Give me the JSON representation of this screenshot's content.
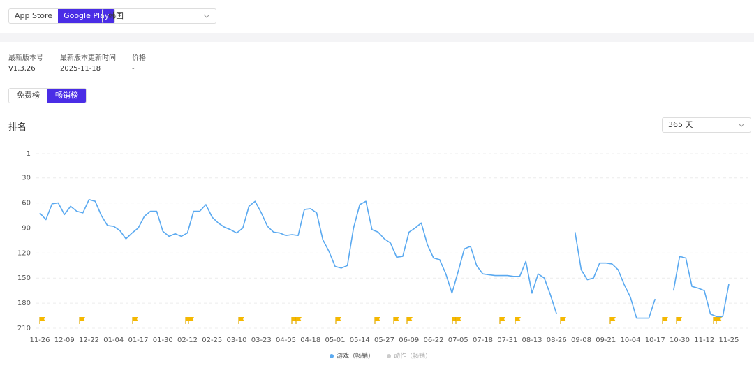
{
  "filters": {
    "store_tabs": [
      "App Store",
      "Google Play"
    ],
    "region": "韩国"
  },
  "app_info": {
    "fields": [
      {
        "label": "最新版本号",
        "value": "V1.3.26"
      },
      {
        "label": "最新版本更新时间",
        "value": "2025-11-18"
      },
      {
        "label": "价格",
        "value": "-"
      }
    ]
  },
  "rank_tabs": [
    "免费榜",
    "畅销榜"
  ],
  "chart_data": {
    "type": "line",
    "title": "排名",
    "range_option": "365 天",
    "y_reversed": true,
    "ylim": [
      1,
      210
    ],
    "yticks": [
      1,
      30,
      60,
      90,
      120,
      150,
      180,
      210
    ],
    "grid": true,
    "categories": [
      "11-26",
      null,
      null,
      null,
      "12-09",
      null,
      null,
      null,
      "12-22",
      null,
      null,
      null,
      "01-04",
      null,
      null,
      null,
      "01-17",
      null,
      null,
      null,
      "01-30",
      null,
      null,
      null,
      "02-12",
      null,
      null,
      null,
      "02-25",
      null,
      null,
      null,
      "03-10",
      null,
      null,
      null,
      "03-23",
      null,
      null,
      null,
      "04-05",
      null,
      null,
      null,
      "04-18",
      null,
      null,
      null,
      "05-01",
      null,
      null,
      null,
      "05-14",
      null,
      null,
      null,
      "05-27",
      null,
      null,
      null,
      "06-09",
      null,
      null,
      null,
      "06-22",
      null,
      null,
      null,
      "07-05",
      null,
      null,
      null,
      "07-18",
      null,
      null,
      null,
      "07-31",
      null,
      null,
      null,
      "08-13",
      null,
      null,
      null,
      "08-26",
      null,
      null,
      null,
      "09-08",
      null,
      null,
      null,
      "09-21",
      null,
      null,
      null,
      "10-04",
      null,
      null,
      null,
      "10-17",
      null,
      null,
      null,
      "10-30",
      null,
      null,
      null,
      "11-12",
      null,
      null,
      null,
      "11-25"
    ],
    "series": [
      {
        "name": "游戏（畅销）",
        "color": "#5aa9f0",
        "values": [
          72,
          80,
          61,
          60,
          74,
          64,
          70,
          72,
          56,
          58,
          75,
          87,
          88,
          93,
          103,
          96,
          90,
          76,
          70,
          70,
          94,
          100,
          97,
          100,
          96,
          70,
          70,
          62,
          77,
          84,
          89,
          92,
          96,
          90,
          64,
          58,
          72,
          88,
          95,
          96,
          99,
          98,
          99,
          68,
          67,
          72,
          104,
          118,
          136,
          138,
          135,
          90,
          62,
          58,
          92,
          95,
          103,
          108,
          125,
          124,
          95,
          90,
          84,
          110,
          126,
          128,
          145,
          168,
          142,
          115,
          112,
          135,
          145,
          146,
          147,
          147,
          147,
          148,
          148,
          130,
          168,
          145,
          150,
          170,
          193,
          null,
          null,
          95,
          140,
          152,
          150,
          132,
          132,
          133,
          140,
          158,
          173,
          198,
          198,
          198,
          175,
          null,
          null,
          165,
          124,
          126,
          160,
          162,
          165,
          193,
          196,
          196,
          157
        ]
      },
      {
        "name": "动作（畅销）",
        "color": "#cccccc",
        "values": [
          null,
          null,
          null,
          null,
          null,
          null,
          null,
          null,
          null,
          null,
          null,
          null,
          null,
          null,
          null,
          null,
          null,
          null,
          null,
          null,
          null,
          null,
          null,
          null,
          null,
          null,
          null,
          null,
          null,
          null,
          null,
          null,
          null,
          null,
          null,
          null,
          null,
          null,
          null,
          null,
          null,
          null,
          null,
          null,
          null,
          null,
          null,
          null,
          null,
          null,
          null,
          null,
          null,
          null,
          null,
          null,
          null,
          null,
          null,
          null,
          null,
          null,
          null,
          null,
          null,
          null,
          null,
          null,
          null,
          null,
          null,
          null,
          null,
          null,
          null,
          null,
          null,
          null,
          null,
          null,
          null,
          null,
          null,
          null,
          null,
          null,
          null,
          null,
          null,
          null,
          null,
          null,
          null,
          null,
          null,
          null,
          null,
          null,
          null,
          null,
          null,
          null,
          null,
          null,
          null,
          null,
          null,
          null,
          null,
          null,
          null,
          null,
          null
        ]
      }
    ]
  }
}
